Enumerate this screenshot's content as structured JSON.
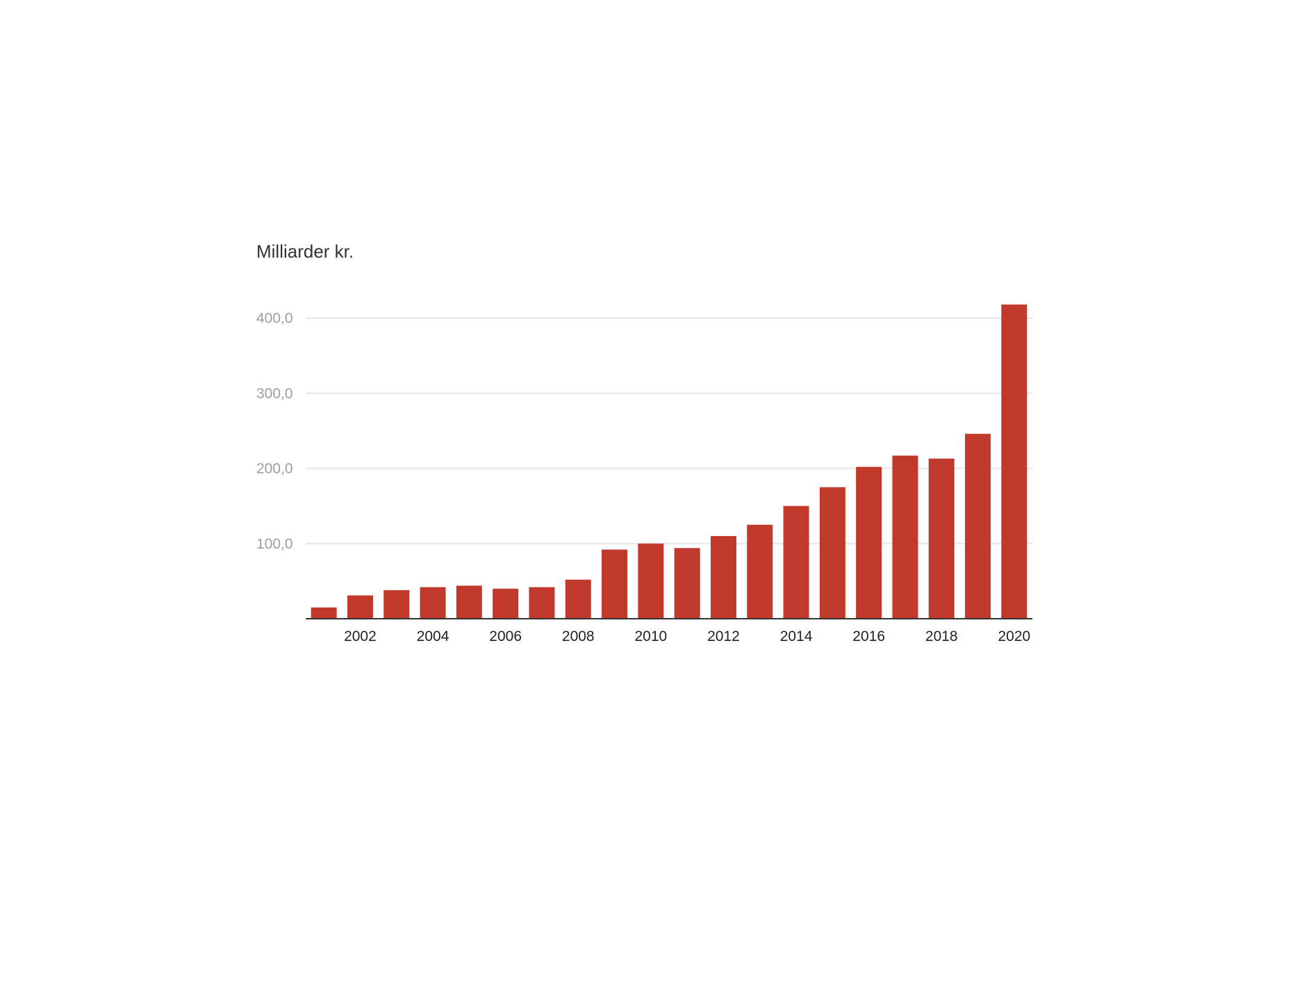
{
  "chart_data": {
    "type": "bar",
    "ylabel": "Milliarder kr.",
    "xlabel": "",
    "x": [
      2001,
      2002,
      2003,
      2004,
      2005,
      2006,
      2007,
      2008,
      2009,
      2010,
      2011,
      2012,
      2013,
      2014,
      2015,
      2016,
      2017,
      2018,
      2019,
      2020
    ],
    "values": [
      15,
      31,
      38,
      42,
      44,
      40,
      42,
      52,
      92,
      100,
      94,
      110,
      125,
      150,
      175,
      202,
      217,
      213,
      246,
      418
    ],
    "x_tick_labels": [
      "2002",
      "2004",
      "2006",
      "2008",
      "2010",
      "2012",
      "2014",
      "2016",
      "2018",
      "2020"
    ],
    "y_ticks": [
      100,
      200,
      300,
      400
    ],
    "y_tick_labels": [
      "100,0",
      "200,0",
      "300,0",
      "400,0"
    ],
    "ylim": [
      0,
      418
    ],
    "grid": true,
    "legend": "none",
    "colors": {
      "bar": "#c0392b",
      "grid": "#e6e6e6",
      "baseline": "#333333"
    }
  }
}
